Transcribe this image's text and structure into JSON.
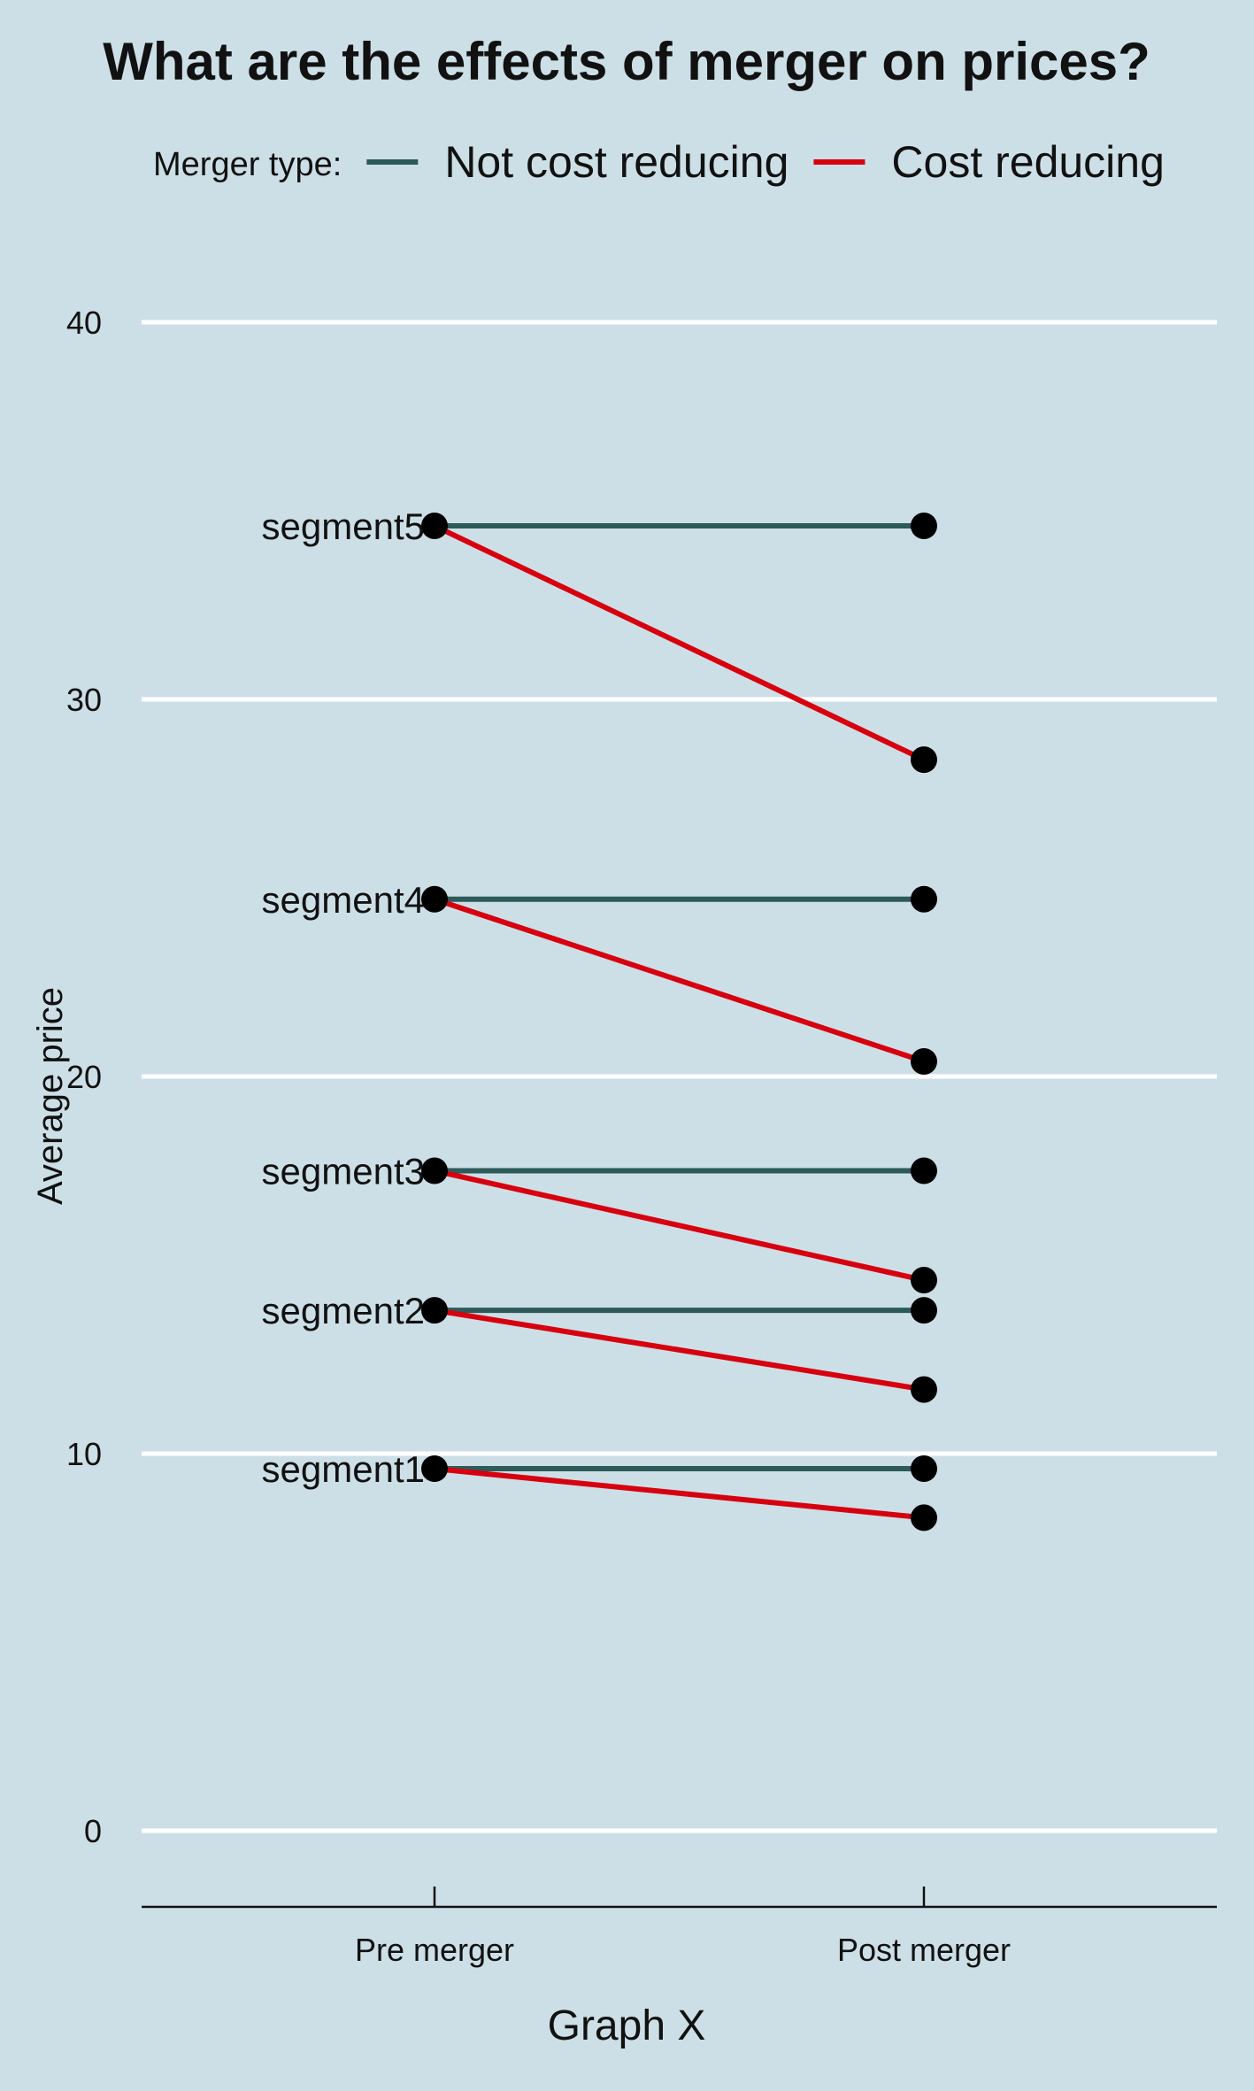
{
  "chart_data": {
    "type": "line",
    "title": "What are the effects of merger on prices?",
    "xlabel": "Graph X",
    "ylabel": "Average price",
    "categories": [
      "Pre merger",
      "Post merger"
    ],
    "ylim": [
      -2,
      42
    ],
    "yticks": [
      0,
      10,
      20,
      30,
      40
    ],
    "grid": "horizontal",
    "legend": {
      "title": "Merger type:",
      "placement": "top",
      "entries": [
        {
          "name": "Not cost reducing",
          "color": "#2d5a5a"
        },
        {
          "name": "Cost reducing",
          "color": "#d7000f"
        }
      ]
    },
    "segments": [
      {
        "label": "segment1",
        "pre": 9.6,
        "post_not_cost_reducing": 9.6,
        "post_cost_reducing": 8.3
      },
      {
        "label": "segment2",
        "pre": 13.8,
        "post_not_cost_reducing": 13.8,
        "post_cost_reducing": 11.7
      },
      {
        "label": "segment3",
        "pre": 17.5,
        "post_not_cost_reducing": 17.5,
        "post_cost_reducing": 14.6
      },
      {
        "label": "segment4",
        "pre": 24.7,
        "post_not_cost_reducing": 24.7,
        "post_cost_reducing": 20.4
      },
      {
        "label": "segment5",
        "pre": 34.6,
        "post_not_cost_reducing": 34.6,
        "post_cost_reducing": 28.4
      }
    ],
    "point_color": "#000000",
    "grid_color": "#ffffff",
    "background_color": "#cddfe6"
  }
}
